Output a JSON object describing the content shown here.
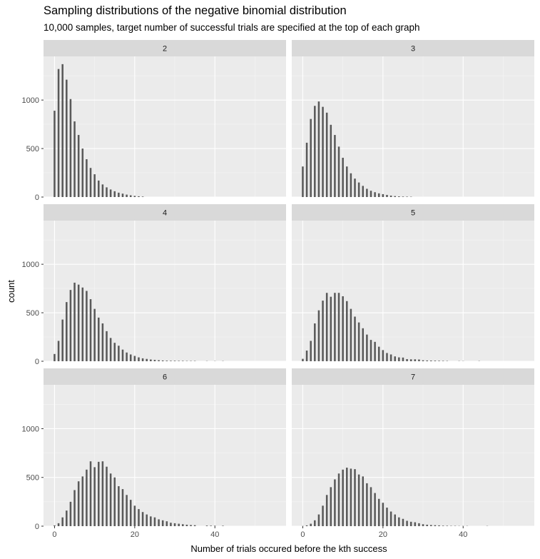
{
  "chart_data": {
    "type": "bar",
    "title": "Sampling distributions of the negative binomial distribution",
    "subtitle": "10,000 samples, target number of successful trials are specified at the top of each graph",
    "xlabel": "Number of trials occured before the kth success",
    "ylabel": "count",
    "xlim": [
      -2.75,
      57.75
    ],
    "ylim": [
      0,
      1450
    ],
    "x_ticks": [
      "0",
      "20",
      "40"
    ],
    "x_tick_values": [
      0,
      20,
      40
    ],
    "y_ticks": [
      "0",
      "500",
      "1000"
    ],
    "y_tick_values": [
      0,
      500,
      1000
    ],
    "grid": true,
    "facets": [
      {
        "label": "2",
        "values": [
          890,
          1320,
          1370,
          1210,
          1010,
          780,
          640,
          500,
          390,
          300,
          235,
          170,
          130,
          100,
          78,
          60,
          45,
          35,
          25,
          18,
          12,
          8,
          5
        ]
      },
      {
        "label": "3",
        "values": [
          315,
          560,
          805,
          940,
          985,
          930,
          870,
          745,
          640,
          520,
          405,
          315,
          245,
          190,
          150,
          115,
          85,
          65,
          50,
          38,
          30,
          22,
          15,
          10,
          7,
          5,
          4,
          3
        ]
      },
      {
        "label": "4",
        "values": [
          75,
          210,
          430,
          610,
          735,
          810,
          790,
          760,
          725,
          640,
          540,
          450,
          390,
          310,
          240,
          190,
          160,
          120,
          90,
          70,
          55,
          40,
          30,
          24,
          18,
          14,
          11,
          8,
          6,
          5,
          5,
          4,
          4,
          3,
          3,
          3,
          0,
          0,
          2,
          0,
          2,
          0,
          2
        ]
      },
      {
        "label": "5",
        "values": [
          25,
          110,
          210,
          390,
          525,
          625,
          705,
          665,
          705,
          705,
          670,
          620,
          540,
          460,
          400,
          340,
          275,
          220,
          200,
          150,
          115,
          85,
          70,
          50,
          40,
          38,
          22,
          20,
          20,
          18,
          10,
          8,
          7,
          6,
          5,
          4,
          3,
          0,
          0,
          2,
          2,
          0,
          0,
          0,
          2
        ]
      },
      {
        "label": "6",
        "values": [
          8,
          30,
          90,
          160,
          250,
          370,
          460,
          510,
          580,
          665,
          605,
          660,
          665,
          610,
          540,
          500,
          410,
          380,
          320,
          270,
          210,
          175,
          145,
          120,
          100,
          90,
          70,
          60,
          50,
          35,
          30,
          25,
          20,
          15,
          12,
          10,
          0,
          0,
          6,
          5,
          4,
          0,
          4
        ]
      },
      {
        "label": "7",
        "values": [
          2,
          8,
          25,
          60,
          120,
          210,
          320,
          400,
          480,
          540,
          580,
          600,
          590,
          585,
          530,
          510,
          440,
          400,
          340,
          280,
          240,
          190,
          150,
          120,
          90,
          75,
          55,
          45,
          40,
          30,
          20,
          15,
          12,
          10,
          8,
          5,
          4,
          3,
          3,
          2,
          2,
          2,
          0,
          0,
          0,
          0,
          2
        ]
      }
    ]
  }
}
